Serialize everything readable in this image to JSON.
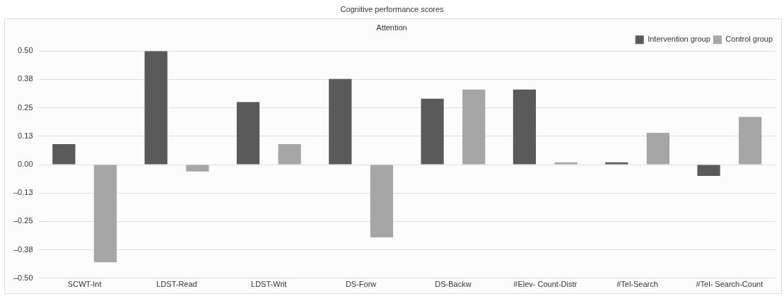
{
  "chart_data": {
    "type": "bar",
    "title": "Cognitive performance scores",
    "subtitle": "Attention",
    "categories": [
      "SCWT-Int",
      "LDST-Read",
      "LDST-Writ",
      "DS-Forw",
      "DS-Backw",
      "#Elev- Count-Distr",
      "#Tel-Search",
      "#Tel- Search-Count"
    ],
    "series": [
      {
        "name": "Intervention group",
        "color": "#5a5a5a",
        "values": [
          0.09,
          0.5,
          0.275,
          0.377,
          0.29,
          0.33,
          0.01,
          -0.05
        ]
      },
      {
        "name": "Control group",
        "color": "#a6a6a6",
        "values": [
          -0.43,
          -0.03,
          0.09,
          -0.32,
          0.33,
          0.01,
          0.14,
          0.21
        ]
      }
    ],
    "ylim": [
      -0.5,
      0.5
    ],
    "yticks": [
      {
        "value": -0.5,
        "label": "–0.50"
      },
      {
        "value": -0.375,
        "label": "–0.38"
      },
      {
        "value": -0.25,
        "label": "–0.25"
      },
      {
        "value": -0.125,
        "label": "–0.13"
      },
      {
        "value": 0,
        "label": "0.00"
      },
      {
        "value": 0.125,
        "label": "0.13"
      },
      {
        "value": 0.25,
        "label": "0.25"
      },
      {
        "value": 0.375,
        "label": "0.38"
      },
      {
        "value": 0.5,
        "label": "0.50"
      }
    ],
    "grid": "y",
    "legend": "top right"
  }
}
